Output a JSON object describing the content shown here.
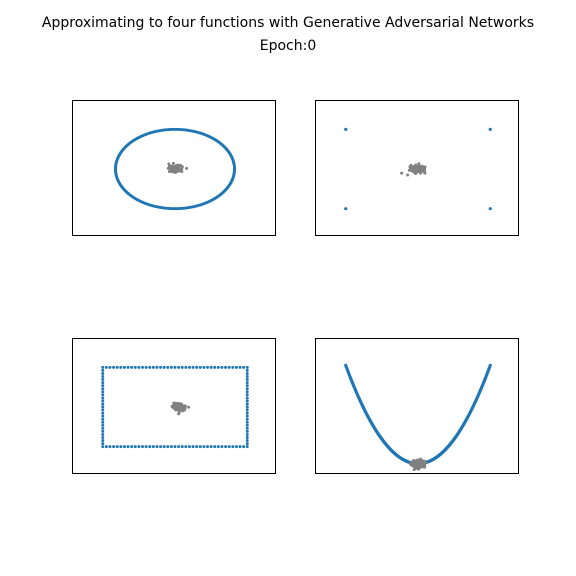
{
  "title": "Approximating to four functions with Generative Adversarial Networks",
  "subtitle": "Epoch:0",
  "colors": {
    "target": "#1f77b4",
    "generated": "#808080",
    "background": "#ffffff",
    "axes": "#000000"
  },
  "chart_data": [
    {
      "type": "scatter",
      "target_shape": "circle",
      "xlim": [
        -1.2,
        1.2
      ],
      "ylim": [
        -1.2,
        1.2
      ],
      "target": {
        "center": [
          0,
          0
        ],
        "radius": 0.7,
        "n": 220
      },
      "generated": {
        "center": [
          0.0,
          0.0
        ],
        "spread": [
          0.035,
          0.03
        ],
        "n": 150
      },
      "axes_ticks": false
    },
    {
      "type": "scatter",
      "target_shape": "square-corners",
      "xlim": [
        -1.2,
        1.2
      ],
      "ylim": [
        -1.2,
        1.2
      ],
      "target": {
        "points": [
          [
            -0.85,
            0.7
          ],
          [
            0.85,
            0.7
          ],
          [
            -0.85,
            -0.7
          ],
          [
            0.85,
            -0.7
          ]
        ]
      },
      "generated": {
        "center": [
          0.0,
          0.0
        ],
        "spread": [
          0.045,
          0.03
        ],
        "n": 150
      },
      "axes_ticks": false
    },
    {
      "type": "scatter",
      "target_shape": "rectangle",
      "xlim": [
        -1.2,
        1.2
      ],
      "ylim": [
        -1.2,
        1.2
      ],
      "target": {
        "x0": -0.85,
        "x1": 0.85,
        "y0": -0.7,
        "y1": 0.7,
        "n_x": 40,
        "n_y": 26
      },
      "generated": {
        "center": [
          0.05,
          0.0
        ],
        "spread": [
          0.035,
          0.03
        ],
        "n": 150
      },
      "axes_ticks": false
    },
    {
      "type": "scatter",
      "target_shape": "parabola",
      "xlim": [
        -1.2,
        1.2
      ],
      "ylim": [
        -0.1,
        1.1
      ],
      "target": {
        "x_range": [
          -0.85,
          0.85
        ],
        "a": 1.2,
        "n": 240
      },
      "generated": {
        "center": [
          0.0,
          0.0
        ],
        "spread": [
          0.035,
          0.02
        ],
        "n": 150
      },
      "axes_ticks": false
    }
  ]
}
